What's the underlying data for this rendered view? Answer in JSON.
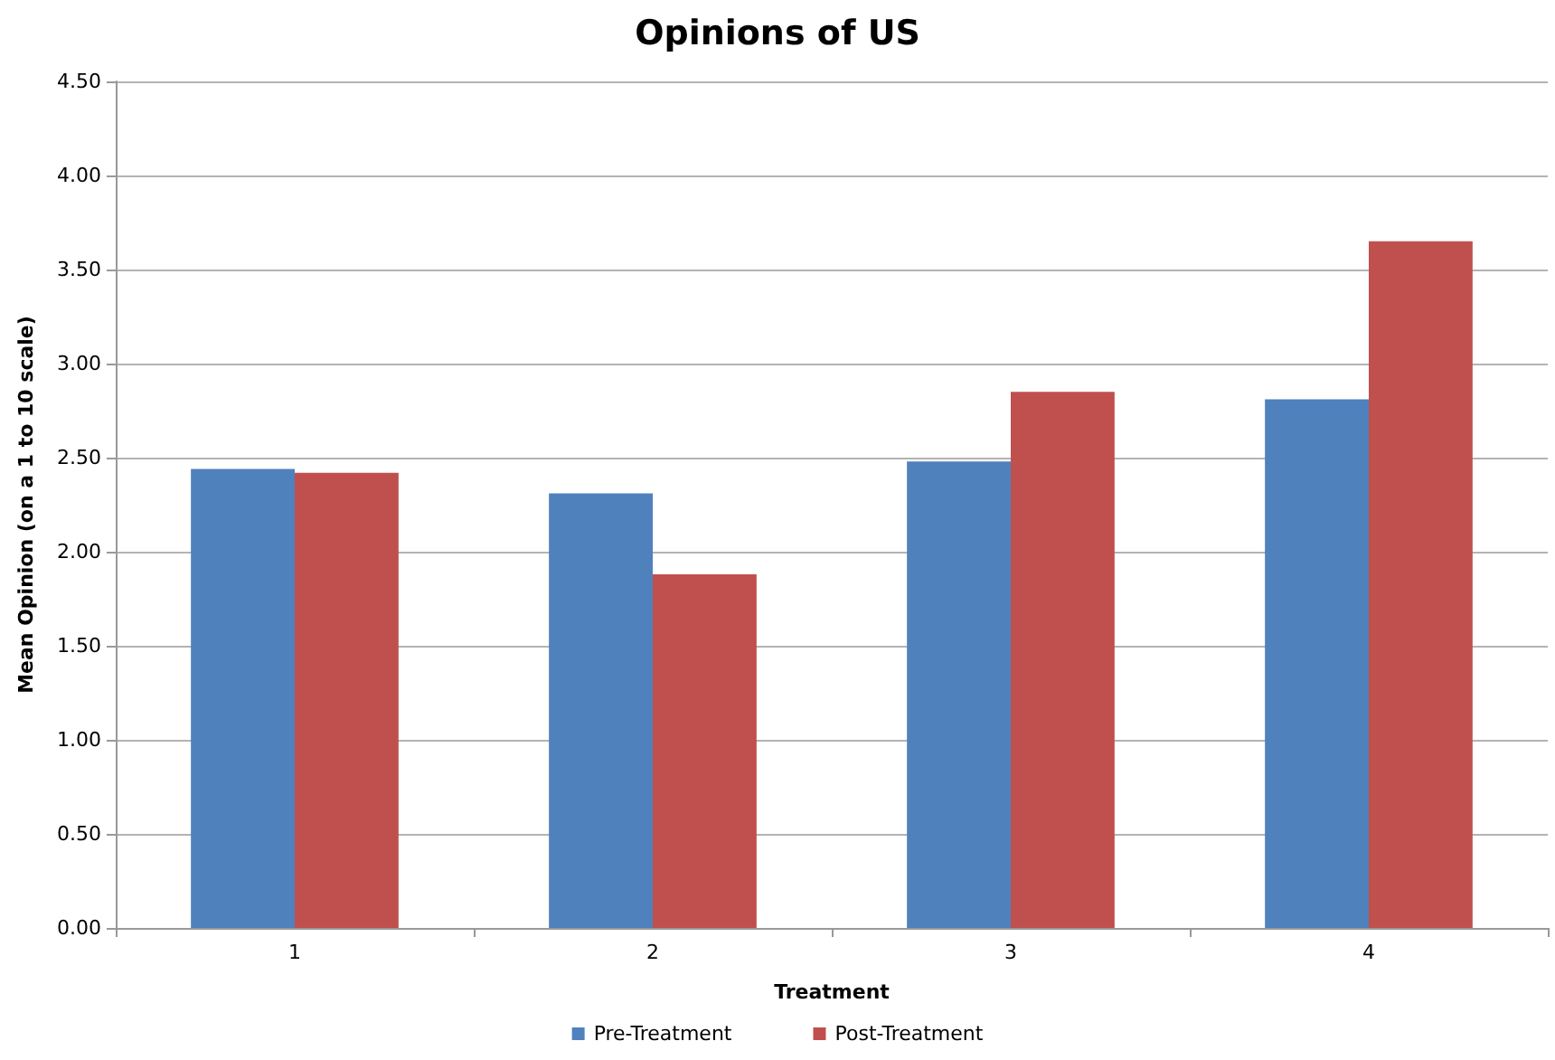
{
  "chart_data": {
    "type": "bar",
    "title": "Opinions of US",
    "xlabel": "Treatment",
    "ylabel": "Mean Opinion (on a 1 to 10 scale)",
    "categories": [
      "1",
      "2",
      "3",
      "4"
    ],
    "series": [
      {
        "name": "Pre-Treatment",
        "color": "#4f81bd",
        "values": [
          2.44,
          2.31,
          2.48,
          2.81
        ]
      },
      {
        "name": "Post-Treatment",
        "color": "#c0504d",
        "values": [
          2.42,
          1.88,
          2.85,
          3.65
        ]
      }
    ],
    "ylim": [
      0,
      4.5
    ],
    "yticks": [
      {
        "value": 0,
        "label": "0.00"
      },
      {
        "value": 0.5,
        "label": "0.50"
      },
      {
        "value": 1,
        "label": "1.00"
      },
      {
        "value": 1.5,
        "label": "1.50"
      },
      {
        "value": 2,
        "label": "2.00"
      },
      {
        "value": 2.5,
        "label": "2.50"
      },
      {
        "value": 3,
        "label": "3.00"
      },
      {
        "value": 3.5,
        "label": "3.50"
      },
      {
        "value": 4,
        "label": "4.00"
      },
      {
        "value": 4.5,
        "label": "4.50"
      }
    ],
    "grid": "y",
    "legend": "bottom"
  }
}
